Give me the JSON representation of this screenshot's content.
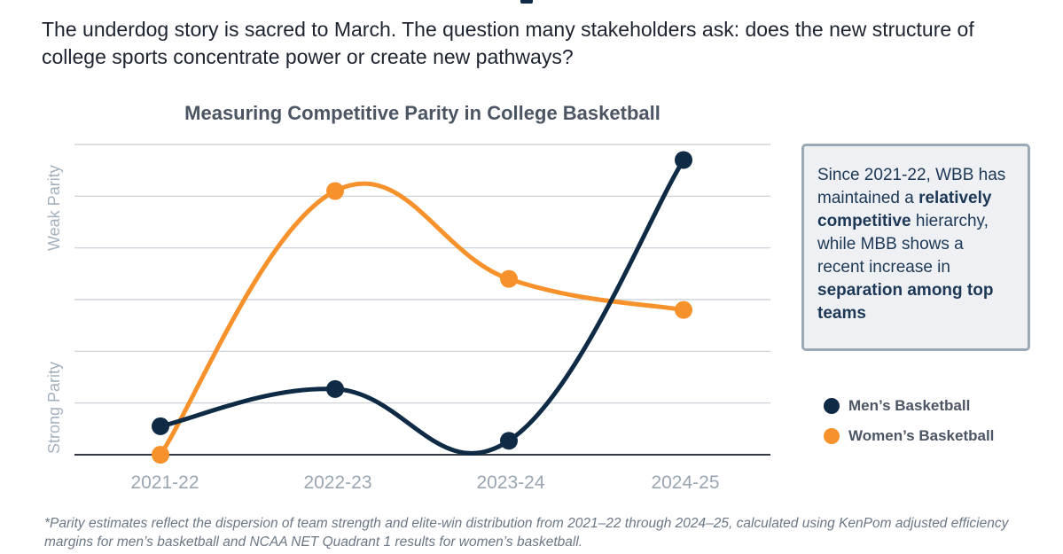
{
  "intro": "The underdog story is sacred to March. The question many stakeholders ask: does the new structure of college sports concentrate power or create new pathways?",
  "chart_data": {
    "type": "line",
    "title": "Measuring Competitive Parity in College Basketball",
    "categories": [
      "2021-22",
      "2022-23",
      "2023-24",
      "2024-25"
    ],
    "xlabel": "",
    "ylabel_top": "Weak Parity",
    "ylabel_bottom": "Strong Parity",
    "ylim": [
      0,
      6
    ],
    "grid": true,
    "smooth": true,
    "legend_position": "right",
    "series": [
      {
        "name": "Men’s Basketball",
        "color": "#0f2a44",
        "values": [
          0.55,
          1.27,
          0.27,
          5.7
        ]
      },
      {
        "name": "Women’s Basketball",
        "color": "#f7912c",
        "values": [
          0.0,
          5.1,
          3.4,
          2.8
        ]
      }
    ]
  },
  "callout": {
    "text1": "Since 2021-22, WBB has maintained a ",
    "bold1": "relatively competitive",
    "text2": " hierarchy, while MBB shows a recent increase in ",
    "bold2": "separation among top teams"
  },
  "footnote": "*Parity estimates reflect the dispersion of team strength and elite-win distribution from 2021–22 through 2024–25, calculated using KenPom adjusted efficiency margins for men’s basketball and NCAA NET Quadrant 1 results for women’s basketball."
}
